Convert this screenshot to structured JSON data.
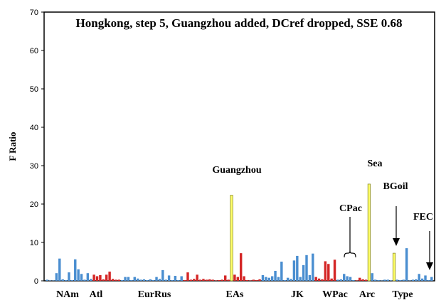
{
  "chart_data": {
    "type": "bar",
    "title": "Hongkong, step 5, Guangzhou added, DCref dropped, SSE 0.68",
    "ylabel": "F Ratio",
    "xlabel": "",
    "ylim": [
      0,
      70
    ],
    "yticks": [
      0,
      10,
      20,
      30,
      40,
      50,
      60,
      70
    ],
    "grid": false,
    "colors": {
      "blue": "#4a8ed0",
      "red": "#d42626",
      "yellow": "#ffff66",
      "frame": "#000000"
    },
    "bars": [
      {
        "v": 0.3,
        "c": "blue"
      },
      {
        "v": 0.1,
        "c": "blue"
      },
      {
        "v": 0.1,
        "c": "blue"
      },
      {
        "v": 2.0,
        "c": "blue"
      },
      {
        "v": 5.8,
        "c": "blue"
      },
      {
        "v": 0.4,
        "c": "blue"
      },
      {
        "v": 0.2,
        "c": "blue"
      },
      {
        "v": 2.2,
        "c": "blue"
      },
      {
        "v": 0.2,
        "c": "blue"
      },
      {
        "v": 5.6,
        "c": "blue"
      },
      {
        "v": 3.0,
        "c": "blue"
      },
      {
        "v": 1.8,
        "c": "blue"
      },
      {
        "v": 0.3,
        "c": "blue"
      },
      {
        "v": 2.0,
        "c": "blue"
      },
      {
        "v": 0.5,
        "c": "blue"
      },
      {
        "v": 1.6,
        "c": "red"
      },
      {
        "v": 1.2,
        "c": "red"
      },
      {
        "v": 1.5,
        "c": "red"
      },
      {
        "v": 0.4,
        "c": "red"
      },
      {
        "v": 1.6,
        "c": "red"
      },
      {
        "v": 2.4,
        "c": "red"
      },
      {
        "v": 0.5,
        "c": "red"
      },
      {
        "v": 0.3,
        "c": "red"
      },
      {
        "v": 0.3,
        "c": "red"
      },
      {
        "v": 0.2,
        "c": "blue"
      },
      {
        "v": 1.0,
        "c": "blue"
      },
      {
        "v": 1.0,
        "c": "blue"
      },
      {
        "v": 0.2,
        "c": "blue"
      },
      {
        "v": 1.0,
        "c": "blue"
      },
      {
        "v": 0.6,
        "c": "blue"
      },
      {
        "v": 0.3,
        "c": "blue"
      },
      {
        "v": 0.4,
        "c": "blue"
      },
      {
        "v": 0.2,
        "c": "blue"
      },
      {
        "v": 0.4,
        "c": "blue"
      },
      {
        "v": 0.2,
        "c": "blue"
      },
      {
        "v": 1.0,
        "c": "blue"
      },
      {
        "v": 0.5,
        "c": "blue"
      },
      {
        "v": 2.8,
        "c": "blue"
      },
      {
        "v": 0.3,
        "c": "blue"
      },
      {
        "v": 1.4,
        "c": "blue"
      },
      {
        "v": 0.2,
        "c": "blue"
      },
      {
        "v": 1.3,
        "c": "blue"
      },
      {
        "v": 0.2,
        "c": "blue"
      },
      {
        "v": 1.2,
        "c": "blue"
      },
      {
        "v": 0.2,
        "c": "red"
      },
      {
        "v": 2.2,
        "c": "red"
      },
      {
        "v": 0.3,
        "c": "red"
      },
      {
        "v": 0.5,
        "c": "red"
      },
      {
        "v": 1.6,
        "c": "red"
      },
      {
        "v": 0.3,
        "c": "red"
      },
      {
        "v": 0.5,
        "c": "red"
      },
      {
        "v": 0.3,
        "c": "red"
      },
      {
        "v": 0.4,
        "c": "red"
      },
      {
        "v": 0.3,
        "c": "red"
      },
      {
        "v": 0.1,
        "c": "red"
      },
      {
        "v": 0.2,
        "c": "red"
      },
      {
        "v": 0.3,
        "c": "red"
      },
      {
        "v": 1.4,
        "c": "red"
      },
      {
        "v": 0.3,
        "c": "red"
      },
      {
        "v": 22.3,
        "c": "yellow"
      },
      {
        "v": 1.6,
        "c": "red"
      },
      {
        "v": 1.0,
        "c": "red"
      },
      {
        "v": 7.2,
        "c": "red"
      },
      {
        "v": 1.2,
        "c": "red"
      },
      {
        "v": 0.2,
        "c": "red"
      },
      {
        "v": 0.1,
        "c": "red"
      },
      {
        "v": 0.3,
        "c": "red"
      },
      {
        "v": 0.2,
        "c": "red"
      },
      {
        "v": 0.4,
        "c": "red"
      },
      {
        "v": 1.5,
        "c": "blue"
      },
      {
        "v": 1.0,
        "c": "blue"
      },
      {
        "v": 0.8,
        "c": "blue"
      },
      {
        "v": 1.2,
        "c": "blue"
      },
      {
        "v": 2.6,
        "c": "blue"
      },
      {
        "v": 1.0,
        "c": "blue"
      },
      {
        "v": 5.0,
        "c": "blue"
      },
      {
        "v": 0.2,
        "c": "blue"
      },
      {
        "v": 0.8,
        "c": "blue"
      },
      {
        "v": 0.5,
        "c": "blue"
      },
      {
        "v": 5.3,
        "c": "blue"
      },
      {
        "v": 6.5,
        "c": "blue"
      },
      {
        "v": 1.0,
        "c": "blue"
      },
      {
        "v": 4.1,
        "c": "blue"
      },
      {
        "v": 6.7,
        "c": "blue"
      },
      {
        "v": 1.5,
        "c": "blue"
      },
      {
        "v": 7.1,
        "c": "blue"
      },
      {
        "v": 1.0,
        "c": "red"
      },
      {
        "v": 0.6,
        "c": "red"
      },
      {
        "v": 0.4,
        "c": "red"
      },
      {
        "v": 5.1,
        "c": "red"
      },
      {
        "v": 4.4,
        "c": "red"
      },
      {
        "v": 0.6,
        "c": "red"
      },
      {
        "v": 5.5,
        "c": "red"
      },
      {
        "v": 0.3,
        "c": "blue"
      },
      {
        "v": 0.4,
        "c": "blue"
      },
      {
        "v": 1.8,
        "c": "blue"
      },
      {
        "v": 1.2,
        "c": "blue"
      },
      {
        "v": 1.0,
        "c": "blue"
      },
      {
        "v": 0.2,
        "c": "blue"
      },
      {
        "v": 0.1,
        "c": "red"
      },
      {
        "v": 0.8,
        "c": "red"
      },
      {
        "v": 0.4,
        "c": "red"
      },
      {
        "v": 0.3,
        "c": "red"
      },
      {
        "v": 25.2,
        "c": "yellow"
      },
      {
        "v": 2.0,
        "c": "blue"
      },
      {
        "v": 0.3,
        "c": "blue"
      },
      {
        "v": 0.2,
        "c": "blue"
      },
      {
        "v": 0.1,
        "c": "blue"
      },
      {
        "v": 0.3,
        "c": "blue"
      },
      {
        "v": 0.3,
        "c": "blue"
      },
      {
        "v": 0.1,
        "c": "blue"
      },
      {
        "v": 7.2,
        "c": "yellow"
      },
      {
        "v": 0.3,
        "c": "blue"
      },
      {
        "v": 0.2,
        "c": "blue"
      },
      {
        "v": 0.3,
        "c": "blue"
      },
      {
        "v": 8.5,
        "c": "blue"
      },
      {
        "v": 0.1,
        "c": "blue"
      },
      {
        "v": 0.3,
        "c": "blue"
      },
      {
        "v": 0.4,
        "c": "blue"
      },
      {
        "v": 1.8,
        "c": "blue"
      },
      {
        "v": 0.6,
        "c": "blue"
      },
      {
        "v": 1.4,
        "c": "blue"
      },
      {
        "v": 0.2,
        "c": "blue"
      },
      {
        "v": 1.0,
        "c": "blue"
      }
    ],
    "group_labels": [
      "NAm",
      "Atl",
      "EurRus",
      "EAs",
      "JK",
      "WPac",
      "Arc",
      "Type"
    ],
    "annotations": [
      "Guangzhou",
      "Sea",
      "BGoil",
      "CPac",
      "FEC"
    ]
  }
}
